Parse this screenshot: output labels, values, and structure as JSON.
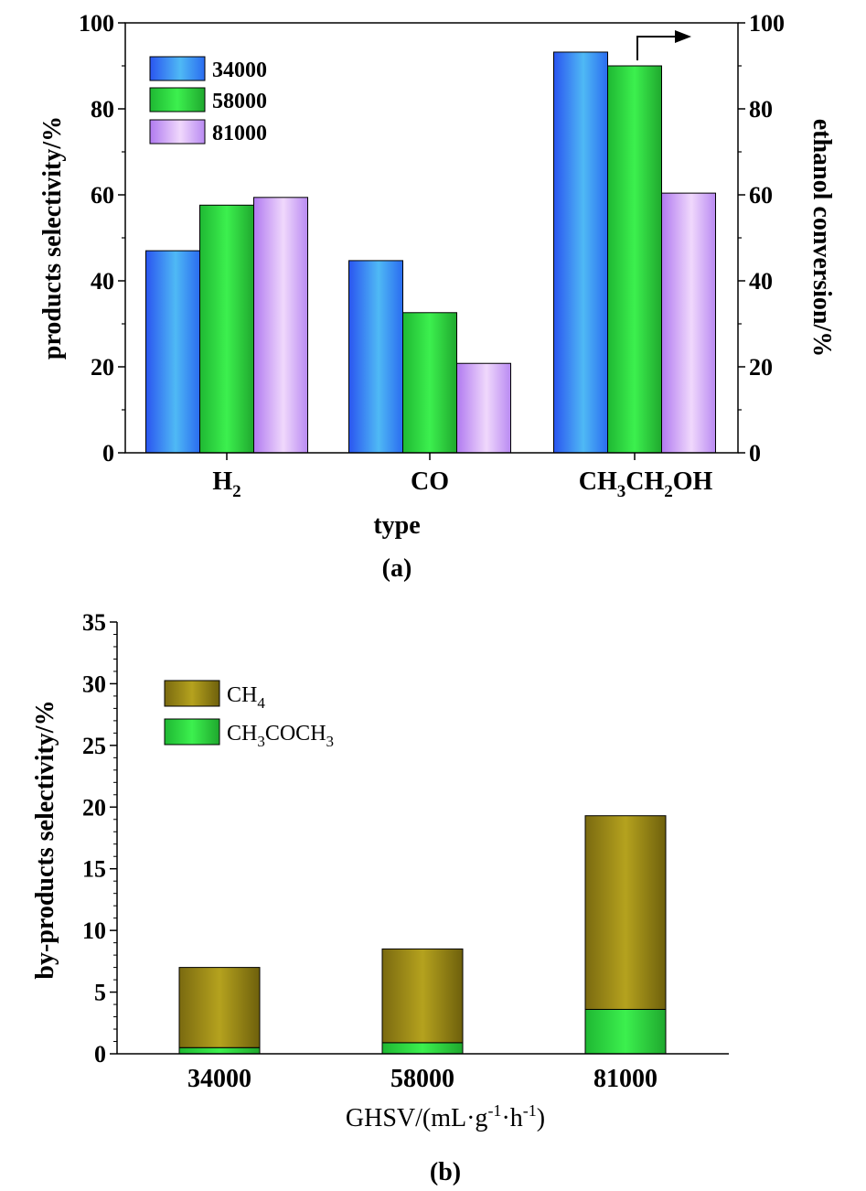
{
  "chart_data": [
    {
      "panel": "a",
      "type": "bar",
      "panel_label": "(a)",
      "xlabel": "type",
      "ylabel": "products selectivity/%",
      "y2label": "ethanol conversion/%",
      "ylim": [
        0,
        100
      ],
      "y2lim": [
        0,
        100
      ],
      "yticks": [
        "0",
        "20",
        "40",
        "60",
        "80",
        "100"
      ],
      "y2ticks": [
        "0",
        "20",
        "40",
        "60",
        "80",
        "100"
      ],
      "categories": [
        {
          "base": "H",
          "sub": "2"
        },
        {
          "base": "CO",
          "sub": ""
        },
        {
          "parts": [
            [
              "CH",
              "3"
            ],
            [
              "CH",
              "2"
            ],
            [
              "OH",
              ""
            ]
          ]
        }
      ],
      "series": [
        {
          "name": "34000",
          "values": [
            47,
            44.7,
            93.2
          ]
        },
        {
          "name": "58000",
          "values": [
            57.6,
            32.6,
            90
          ]
        },
        {
          "name": "81000",
          "values": [
            59.4,
            20.8,
            60.4
          ]
        }
      ],
      "annotation": "CH3CH2OH bars refer to right axis (arrow)"
    },
    {
      "panel": "b",
      "type": "bar",
      "stacked": true,
      "panel_label": "(b)",
      "xlabel": "GHSV/(mL·g-1·h-1)",
      "ylabel": "by-products selectivity/%",
      "ylim": [
        0,
        35
      ],
      "yticks": [
        "0",
        "5",
        "10",
        "15",
        "20",
        "25",
        "30",
        "35"
      ],
      "categories": [
        "34000",
        "58000",
        "81000"
      ],
      "series": [
        {
          "name": "CH3COCH3",
          "legend_base": "CH",
          "legend_parts": [
            [
              "CH",
              "3"
            ],
            [
              "COCH",
              "3"
            ]
          ],
          "values": [
            0.5,
            0.9,
            3.6
          ]
        },
        {
          "name": "CH4",
          "legend_parts": [
            [
              "CH",
              "4"
            ]
          ],
          "values": [
            6.5,
            7.6,
            15.7
          ]
        }
      ]
    }
  ]
}
